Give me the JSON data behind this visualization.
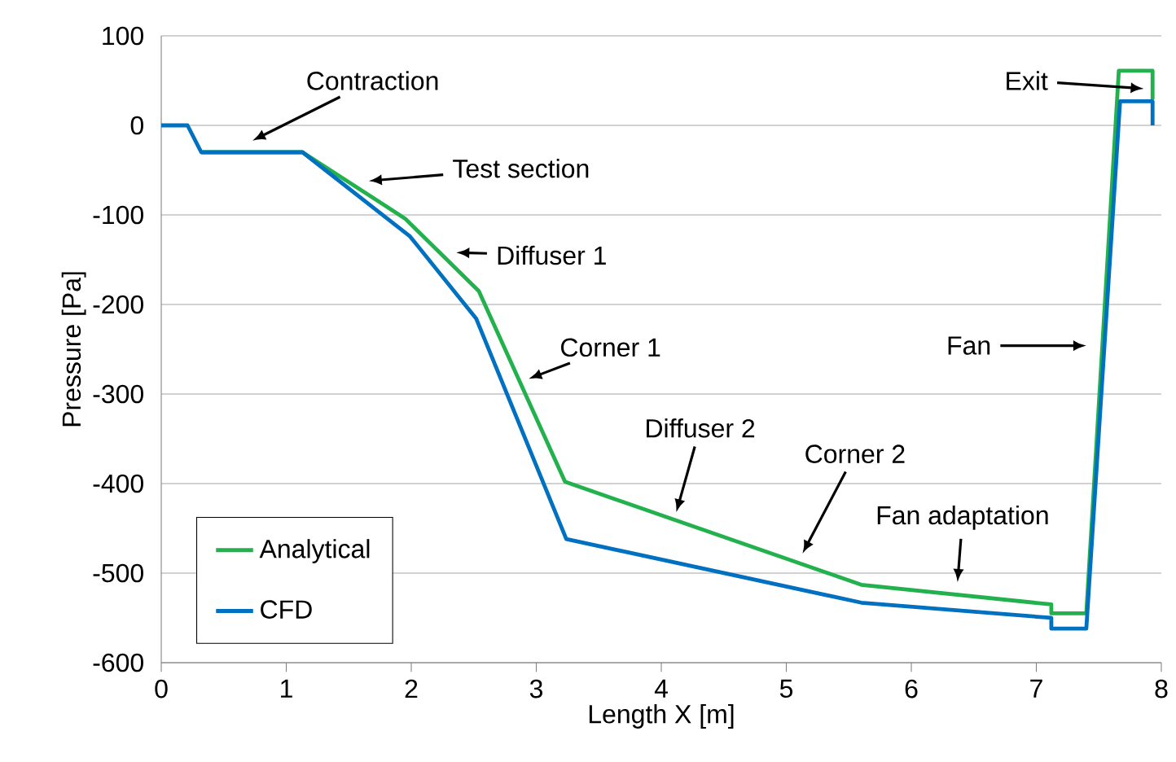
{
  "chart_data": {
    "type": "line",
    "xlabel": "Length X [m]",
    "ylabel": "Pressure [Pa]",
    "xlim": [
      0,
      8
    ],
    "ylim": [
      -600,
      100
    ],
    "xticks": [
      0,
      1,
      2,
      3,
      4,
      5,
      6,
      7,
      8
    ],
    "yticks": [
      -600,
      -500,
      -400,
      -300,
      -200,
      -100,
      0,
      100
    ],
    "grid": "y",
    "legend": "bottom left",
    "marker": "none",
    "line_style": "solid",
    "series": [
      {
        "name": "Analytical",
        "color": "#22b14c",
        "x": [
          0.32,
          1.13,
          1.95,
          2.54,
          3.23,
          5.6,
          7.12,
          7.12,
          7.4,
          7.66,
          7.93,
          7.93
        ],
        "values": [
          -30,
          -30,
          -104,
          -185,
          -398,
          -513,
          -535,
          -545,
          -545,
          61,
          61,
          29
        ]
      },
      {
        "name": "CFD",
        "color": "#0070c0",
        "x": [
          0,
          0.21,
          0.32,
          1.13,
          1.99,
          2.52,
          3.24,
          5.6,
          7.12,
          7.12,
          7.4,
          7.67,
          7.93,
          7.93
        ],
        "values": [
          0,
          0,
          -30,
          -30,
          -124,
          -216,
          -462,
          -533,
          -550,
          -562,
          -562,
          27,
          27,
          0
        ]
      }
    ],
    "annotations": [
      "Contraction",
      "Test section",
      "Diffuser 1",
      "Corner 1",
      "Diffuser 2",
      "Corner 2",
      "Fan adaptation",
      "Fan",
      "Exit"
    ]
  }
}
